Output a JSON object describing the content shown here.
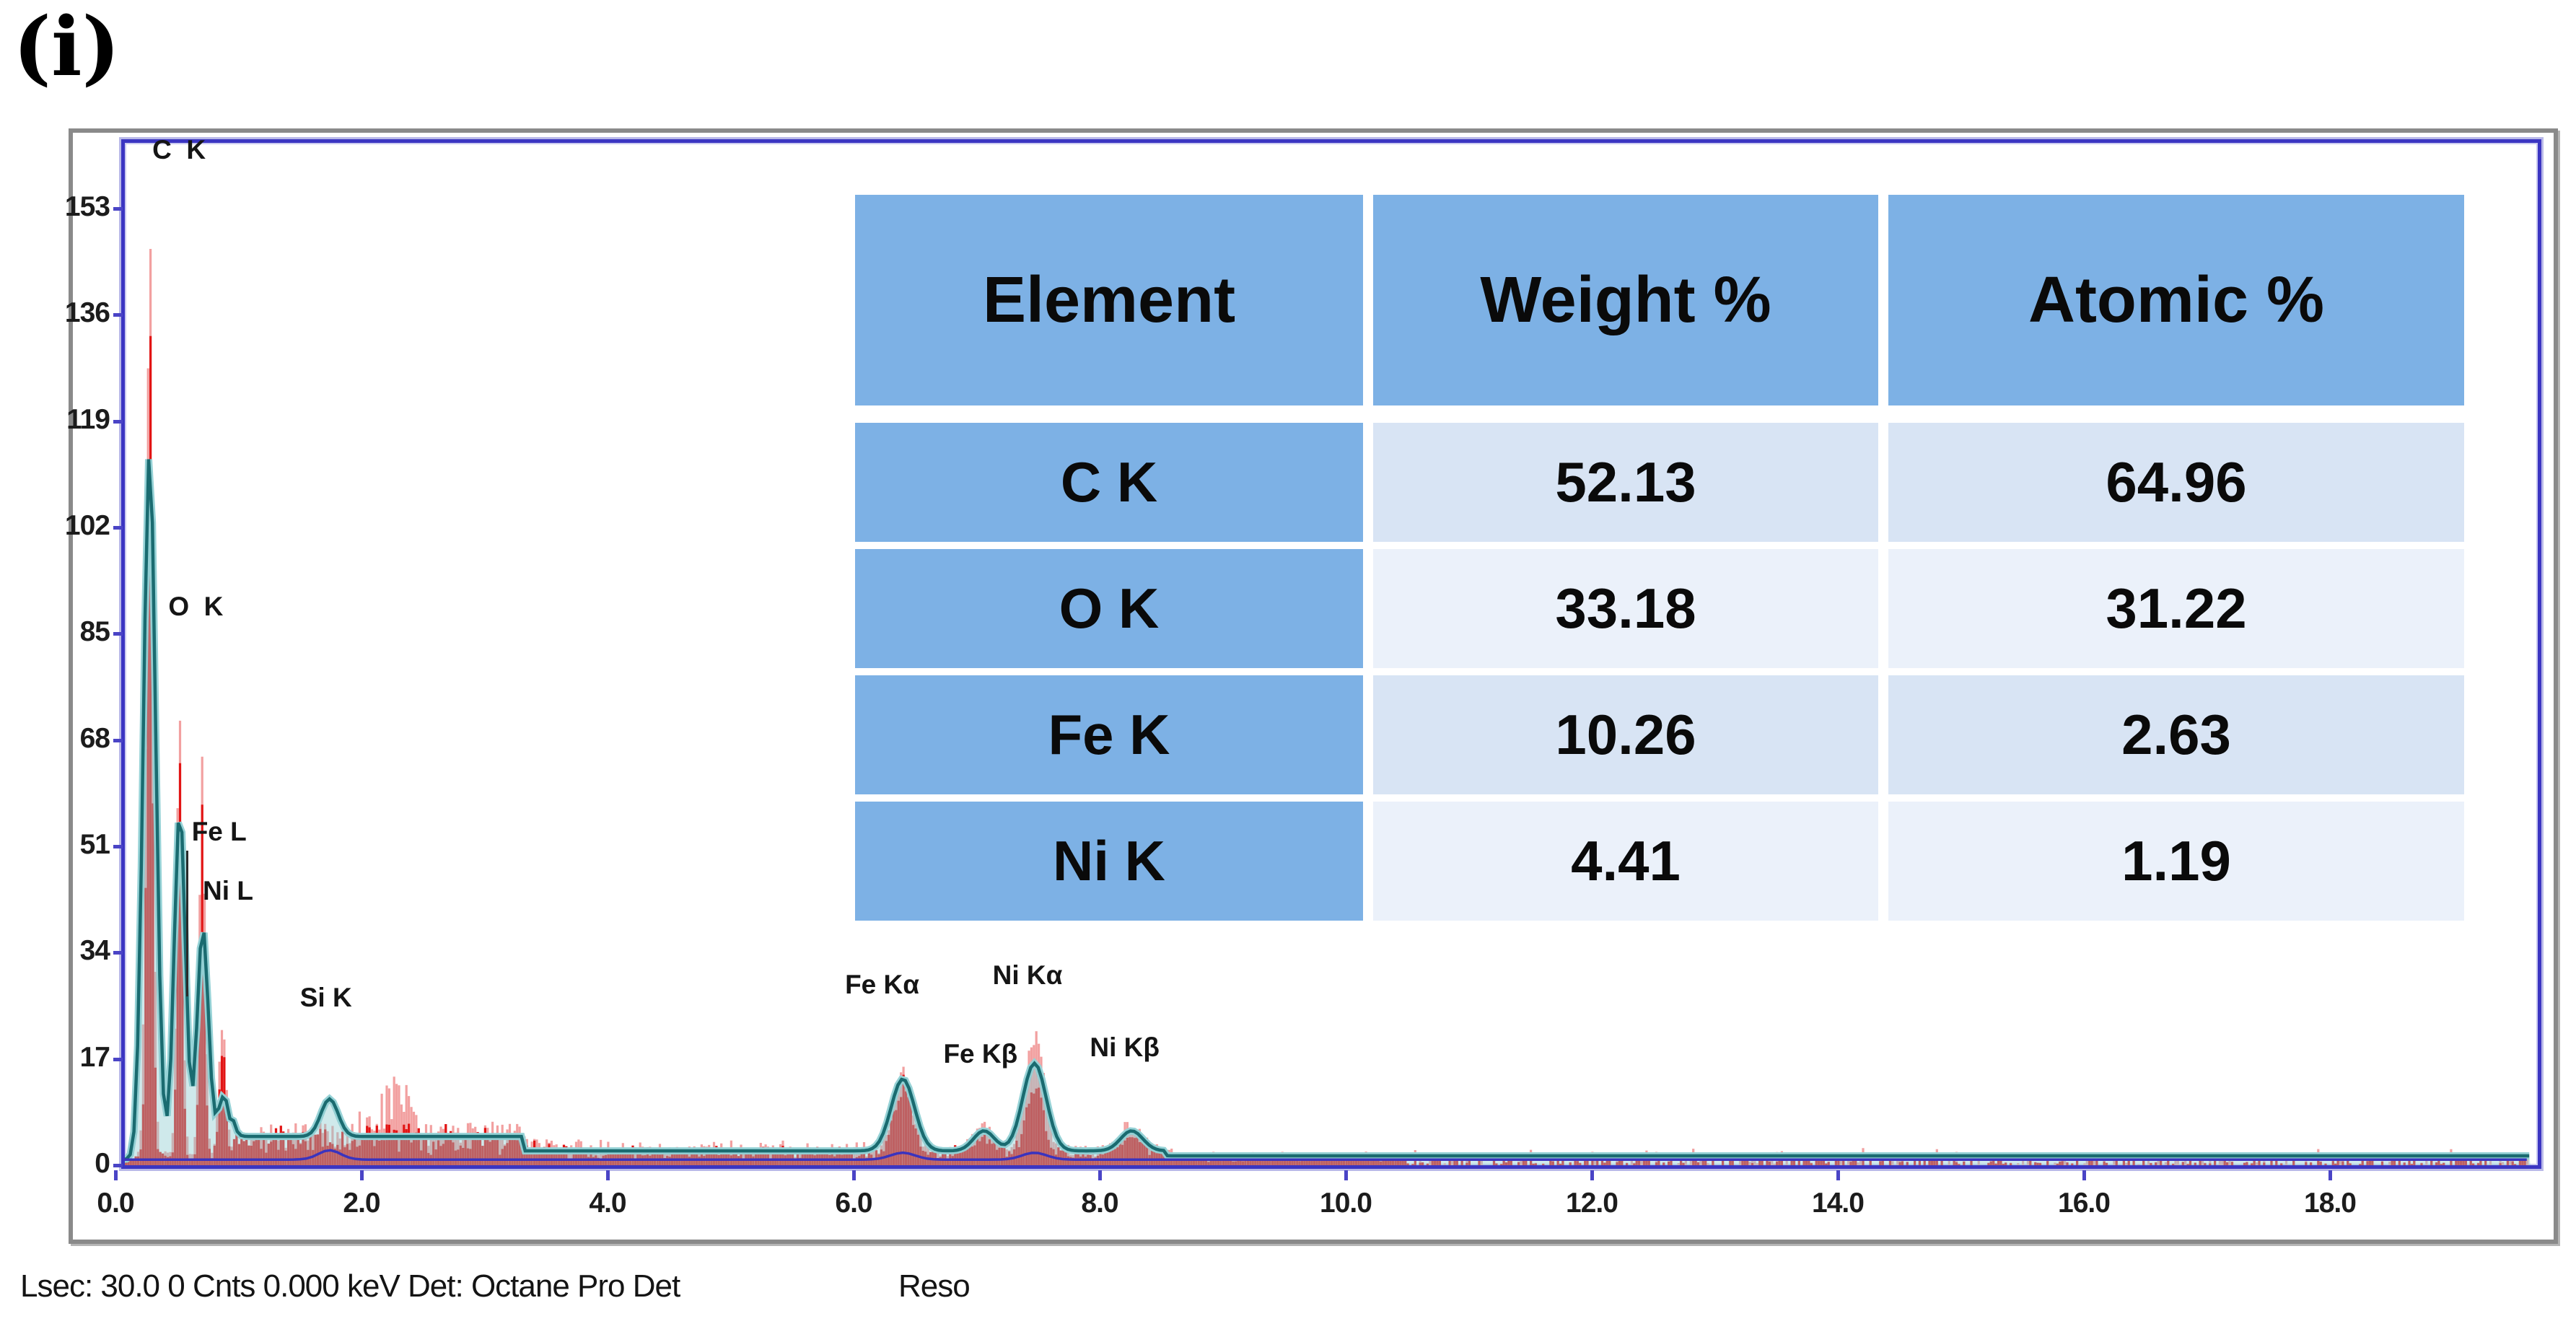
{
  "figure_label": "(i)",
  "status_bar": {
    "left": "Lsec: 30.0 0 Cnts  0.000 keV Det: Octane Pro Det",
    "right": "Reso"
  },
  "table": {
    "headers": [
      "Element",
      "Weight %",
      "Atomic %"
    ],
    "rows": [
      [
        "C K",
        "52.13",
        "64.96"
      ],
      [
        "O K",
        "33.18",
        "31.22"
      ],
      [
        "Fe K",
        "10.26",
        "2.63"
      ],
      [
        "Ni K",
        "4.41",
        "1.19"
      ]
    ],
    "colors": {
      "header_bg": "#7db1e5",
      "label_col_bg": "#7db1e5",
      "row_bg_odd": "#d8e4f4",
      "row_bg_even": "#ebf1fa"
    }
  },
  "chart_data": {
    "type": "bar",
    "subtype": "eds-spectrum-histogram-with-fit-line",
    "title": "",
    "xlabel": "",
    "ylabel": "",
    "x_unit": "keV",
    "y_unit": "Cnts",
    "xlim": [
      0,
      19.7
    ],
    "ylim": [
      0,
      163.5
    ],
    "grid": false,
    "x_ticks": [
      {
        "label": "0.0",
        "value": 0.0
      },
      {
        "label": "2.0",
        "value": 2.0
      },
      {
        "label": "4.0",
        "value": 4.0
      },
      {
        "label": "6.0",
        "value": 6.0
      },
      {
        "label": "8.0",
        "value": 8.0
      },
      {
        "label": "10.0",
        "value": 10.0
      },
      {
        "label": "12.0",
        "value": 12.0
      },
      {
        "label": "14.0",
        "value": 14.0
      },
      {
        "label": "16.0",
        "value": 16.0
      },
      {
        "label": "18.0",
        "value": 18.0
      }
    ],
    "y_ticks": [
      {
        "label": "0",
        "value": 0
      },
      {
        "label": "17",
        "value": 17
      },
      {
        "label": "34",
        "value": 34
      },
      {
        "label": "51",
        "value": 51
      },
      {
        "label": "68",
        "value": 68
      },
      {
        "label": "85",
        "value": 85
      },
      {
        "label": "102",
        "value": 102
      },
      {
        "label": "119",
        "value": 119
      },
      {
        "label": "136",
        "value": 136
      },
      {
        "label": "153",
        "value": 153
      }
    ],
    "peak_labels": [
      {
        "text": "C  K",
        "e": 0.3,
        "c": 160.0
      },
      {
        "text": "O  K",
        "e": 0.43,
        "c": 87.0
      },
      {
        "text": "Fe L",
        "e": 0.62,
        "c": 51.0,
        "tick_to_c": 27
      },
      {
        "text": "Ni L",
        "e": 0.71,
        "c": 41.5
      },
      {
        "text": "Si K",
        "e": 1.5,
        "c": 24.5
      },
      {
        "text": "Fe Kα",
        "e": 5.93,
        "c": 26.5
      },
      {
        "text": "Fe Kβ",
        "e": 6.73,
        "c": 15.5
      },
      {
        "text": "Ni Kα",
        "e": 7.13,
        "c": 28.0
      },
      {
        "text": "Ni Kβ",
        "e": 7.92,
        "c": 16.5
      }
    ],
    "fit_peaks": [
      [
        0.277,
        112,
        0.05
      ],
      [
        0.523,
        55,
        0.045
      ],
      [
        0.71,
        36,
        0.045
      ],
      [
        0.88,
        9,
        0.05
      ],
      [
        1.74,
        6,
        0.07
      ],
      [
        6.4,
        11.5,
        0.095
      ],
      [
        7.06,
        3.2,
        0.085
      ],
      [
        7.47,
        14,
        0.095
      ],
      [
        8.26,
        3.2,
        0.09
      ]
    ],
    "raw_peaks": [
      [
        0.277,
        138,
        0.022
      ],
      [
        0.523,
        64,
        0.02
      ],
      [
        0.705,
        56,
        0.02
      ],
      [
        0.87,
        17,
        0.025
      ],
      [
        6.4,
        11,
        0.07
      ],
      [
        7.06,
        3,
        0.07
      ],
      [
        7.47,
        11,
        0.07
      ],
      [
        8.26,
        3,
        0.075
      ]
    ],
    "pink_peaks": [
      [
        0.277,
        150,
        0.026
      ],
      [
        0.523,
        71,
        0.024
      ],
      [
        0.705,
        63,
        0.024
      ],
      [
        0.87,
        20,
        0.03
      ],
      [
        2.3,
        5,
        0.1
      ],
      [
        6.4,
        13,
        0.075
      ],
      [
        7.06,
        4,
        0.08
      ],
      [
        7.47,
        19,
        0.075
      ],
      [
        8.26,
        4.5,
        0.08
      ]
    ],
    "background_levels": [
      {
        "to": 0.16,
        "level": 0.9
      },
      {
        "to": 0.95,
        "level": 2.0
      },
      {
        "to": 3.3,
        "level": 4.6
      },
      {
        "to": 8.55,
        "level": 2.3
      },
      {
        "to": 19.7,
        "level": 1.5
      }
    ],
    "noise_envelope": [
      {
        "to": 0.18,
        "amp": 0.7
      },
      {
        "to": 0.95,
        "amp": 1.6
      },
      {
        "to": 3.45,
        "amp": 5.2
      },
      {
        "to": 6.1,
        "amp": 3.0
      },
      {
        "to": 8.6,
        "amp": 2.4
      },
      {
        "to": 10.5,
        "amp": 1.6
      },
      {
        "to": 19.7,
        "amp": 1.1
      }
    ],
    "noise_bumps": [
      [
        2.3,
        4.5,
        0.14
      ],
      [
        2.02,
        2.0,
        0.08
      ],
      [
        3.7,
        1.2,
        0.15
      ]
    ],
    "baseline_bumps": [
      [
        1.74,
        1.5,
        0.09
      ],
      [
        6.4,
        1.1,
        0.1
      ],
      [
        7.47,
        1.1,
        0.1
      ]
    ],
    "noise_seed": 1337,
    "colors": {
      "raw_red": "#e21414",
      "raw_pink": "#f2a0a0",
      "fit_stroke": "#1a6b70",
      "fit_glow": "#96d2d6",
      "fit_fill": "rgba(140,202,208,0.42)",
      "baseline_blue": "#3a33be",
      "axis_border": "#3b35c2",
      "frame_gray": "#8a8a8a"
    }
  }
}
